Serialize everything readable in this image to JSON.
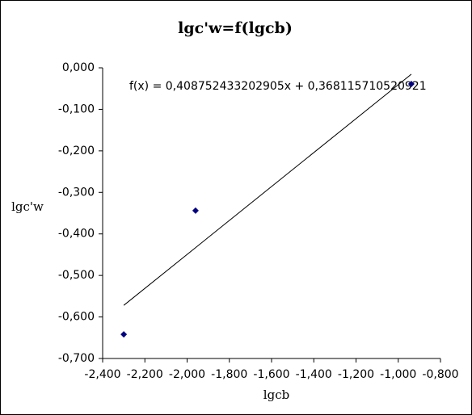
{
  "chart_data": {
    "type": "scatter",
    "title": "lgc'w=f(lgcb)",
    "x_label": "lgcb",
    "y_label": "lgc'w",
    "series": [
      {
        "color": "#000080",
        "x": [
          -2.3,
          -1.96,
          -0.938
        ],
        "values": [
          -0.642,
          -0.344,
          -0.039
        ]
      }
    ],
    "trendline": {
      "slope": 0.408752433202905,
      "intercept": 0.368115710520921,
      "label": "f(x) = 0,408752433202905x + 0,368115710520921",
      "color": "#000000"
    },
    "xlim": [
      -2.4,
      -0.8
    ],
    "xticks": [
      {
        "value": -2.4,
        "label": "-2,400"
      },
      {
        "value": -2.2,
        "label": "-2,200"
      },
      {
        "value": -2.0,
        "label": "-2,000"
      },
      {
        "value": -1.8,
        "label": "-1,800"
      },
      {
        "value": -1.6,
        "label": "-1,600"
      },
      {
        "value": -1.4,
        "label": "-1,400"
      },
      {
        "value": -1.2,
        "label": "-1,200"
      },
      {
        "value": -1.0,
        "label": "-1,000"
      },
      {
        "value": -0.8,
        "label": "-0,800"
      }
    ],
    "ylim": [
      -0.7,
      0
    ],
    "yticks": [
      {
        "value": 0,
        "label": "0,000"
      },
      {
        "value": -0.1,
        "label": "-0,100"
      },
      {
        "value": -0.2,
        "label": "-0,200"
      },
      {
        "value": -0.3,
        "label": "-0,300"
      },
      {
        "value": -0.4,
        "label": "-0,400"
      },
      {
        "value": -0.5,
        "label": "-0,500"
      },
      {
        "value": -0.6,
        "label": "-0,600"
      },
      {
        "value": -0.7,
        "label": "-0,700"
      }
    ]
  }
}
